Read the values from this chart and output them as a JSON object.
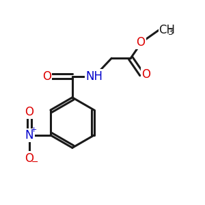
{
  "bg_color": "#ffffff",
  "bond_color": "#1a1a1a",
  "bond_width": 2.2,
  "atom_colors": {
    "O": "#dd0000",
    "N": "#0000cc",
    "C": "#1a1a1a"
  },
  "font_size_atom": 12,
  "font_size_sub": 9
}
